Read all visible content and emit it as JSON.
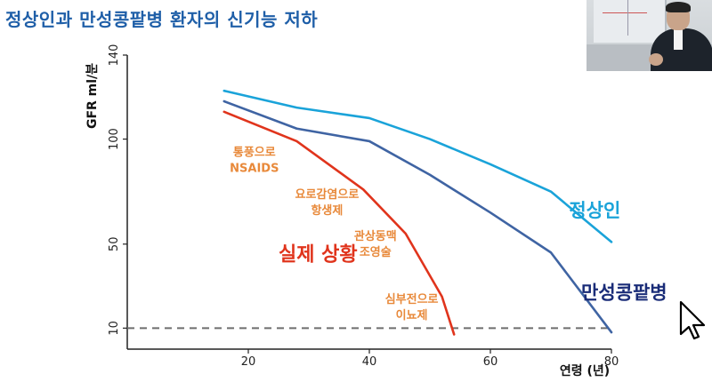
{
  "page": {
    "title": "정상인과 만성콩팥병 환자의 신기능 저하"
  },
  "presenter": {
    "icon": "presenter-video-icon"
  },
  "colors": {
    "title": "#1f5fa8",
    "normal": "#1aa3d9",
    "ckd": "#3f64a3",
    "actual": "#e0341c",
    "annotation": "#e8893a",
    "threshold": "#6e6e6e"
  },
  "chart_data": {
    "type": "line",
    "title": "",
    "xlabel": "연령 (년)",
    "ylabel": "GFR ml/분",
    "xlim": [
      0,
      80
    ],
    "ylim": [
      0,
      140
    ],
    "x_ticks": [
      "20",
      "40",
      "60",
      "80"
    ],
    "x_tick_values": [
      20,
      40,
      60,
      80
    ],
    "y_ticks": [
      "10",
      "50",
      "100",
      "140"
    ],
    "y_tick_values": [
      10,
      50,
      100,
      140
    ],
    "series": [
      {
        "name": "정상인",
        "x": [
          16,
          28,
          40,
          50,
          60,
          70,
          80
        ],
        "y": [
          123,
          115,
          110,
          100,
          88,
          75,
          51
        ]
      },
      {
        "name": "만성콩팥병",
        "x": [
          16,
          28,
          40,
          50,
          60,
          70,
          80
        ],
        "y": [
          118,
          105,
          99,
          83,
          65,
          46,
          8
        ]
      },
      {
        "name": "실제 상황",
        "x": [
          16,
          28,
          39,
          46,
          52,
          54
        ],
        "y": [
          113,
          99,
          76,
          55,
          25,
          7
        ]
      }
    ],
    "threshold": {
      "y": 10,
      "style": "dashed"
    },
    "annotations": [
      {
        "line1": "통풍으로",
        "line2": "NSAIDS",
        "x": 21,
        "y": 92
      },
      {
        "line1": "요로감염으로",
        "line2": "항생제",
        "x": 33,
        "y": 72
      },
      {
        "line1": "관상동맥",
        "line2": "조영술",
        "x": 41,
        "y": 52
      },
      {
        "line1": "심부전으로",
        "line2": "이뇨제",
        "x": 47,
        "y": 22
      }
    ],
    "series_labels": [
      {
        "text": "정상인",
        "x": 73,
        "y": 63
      },
      {
        "text": "만성콩팥병",
        "x": 75,
        "y": 24
      },
      {
        "text": "실제 상황",
        "x": 25,
        "y": 42
      }
    ]
  }
}
